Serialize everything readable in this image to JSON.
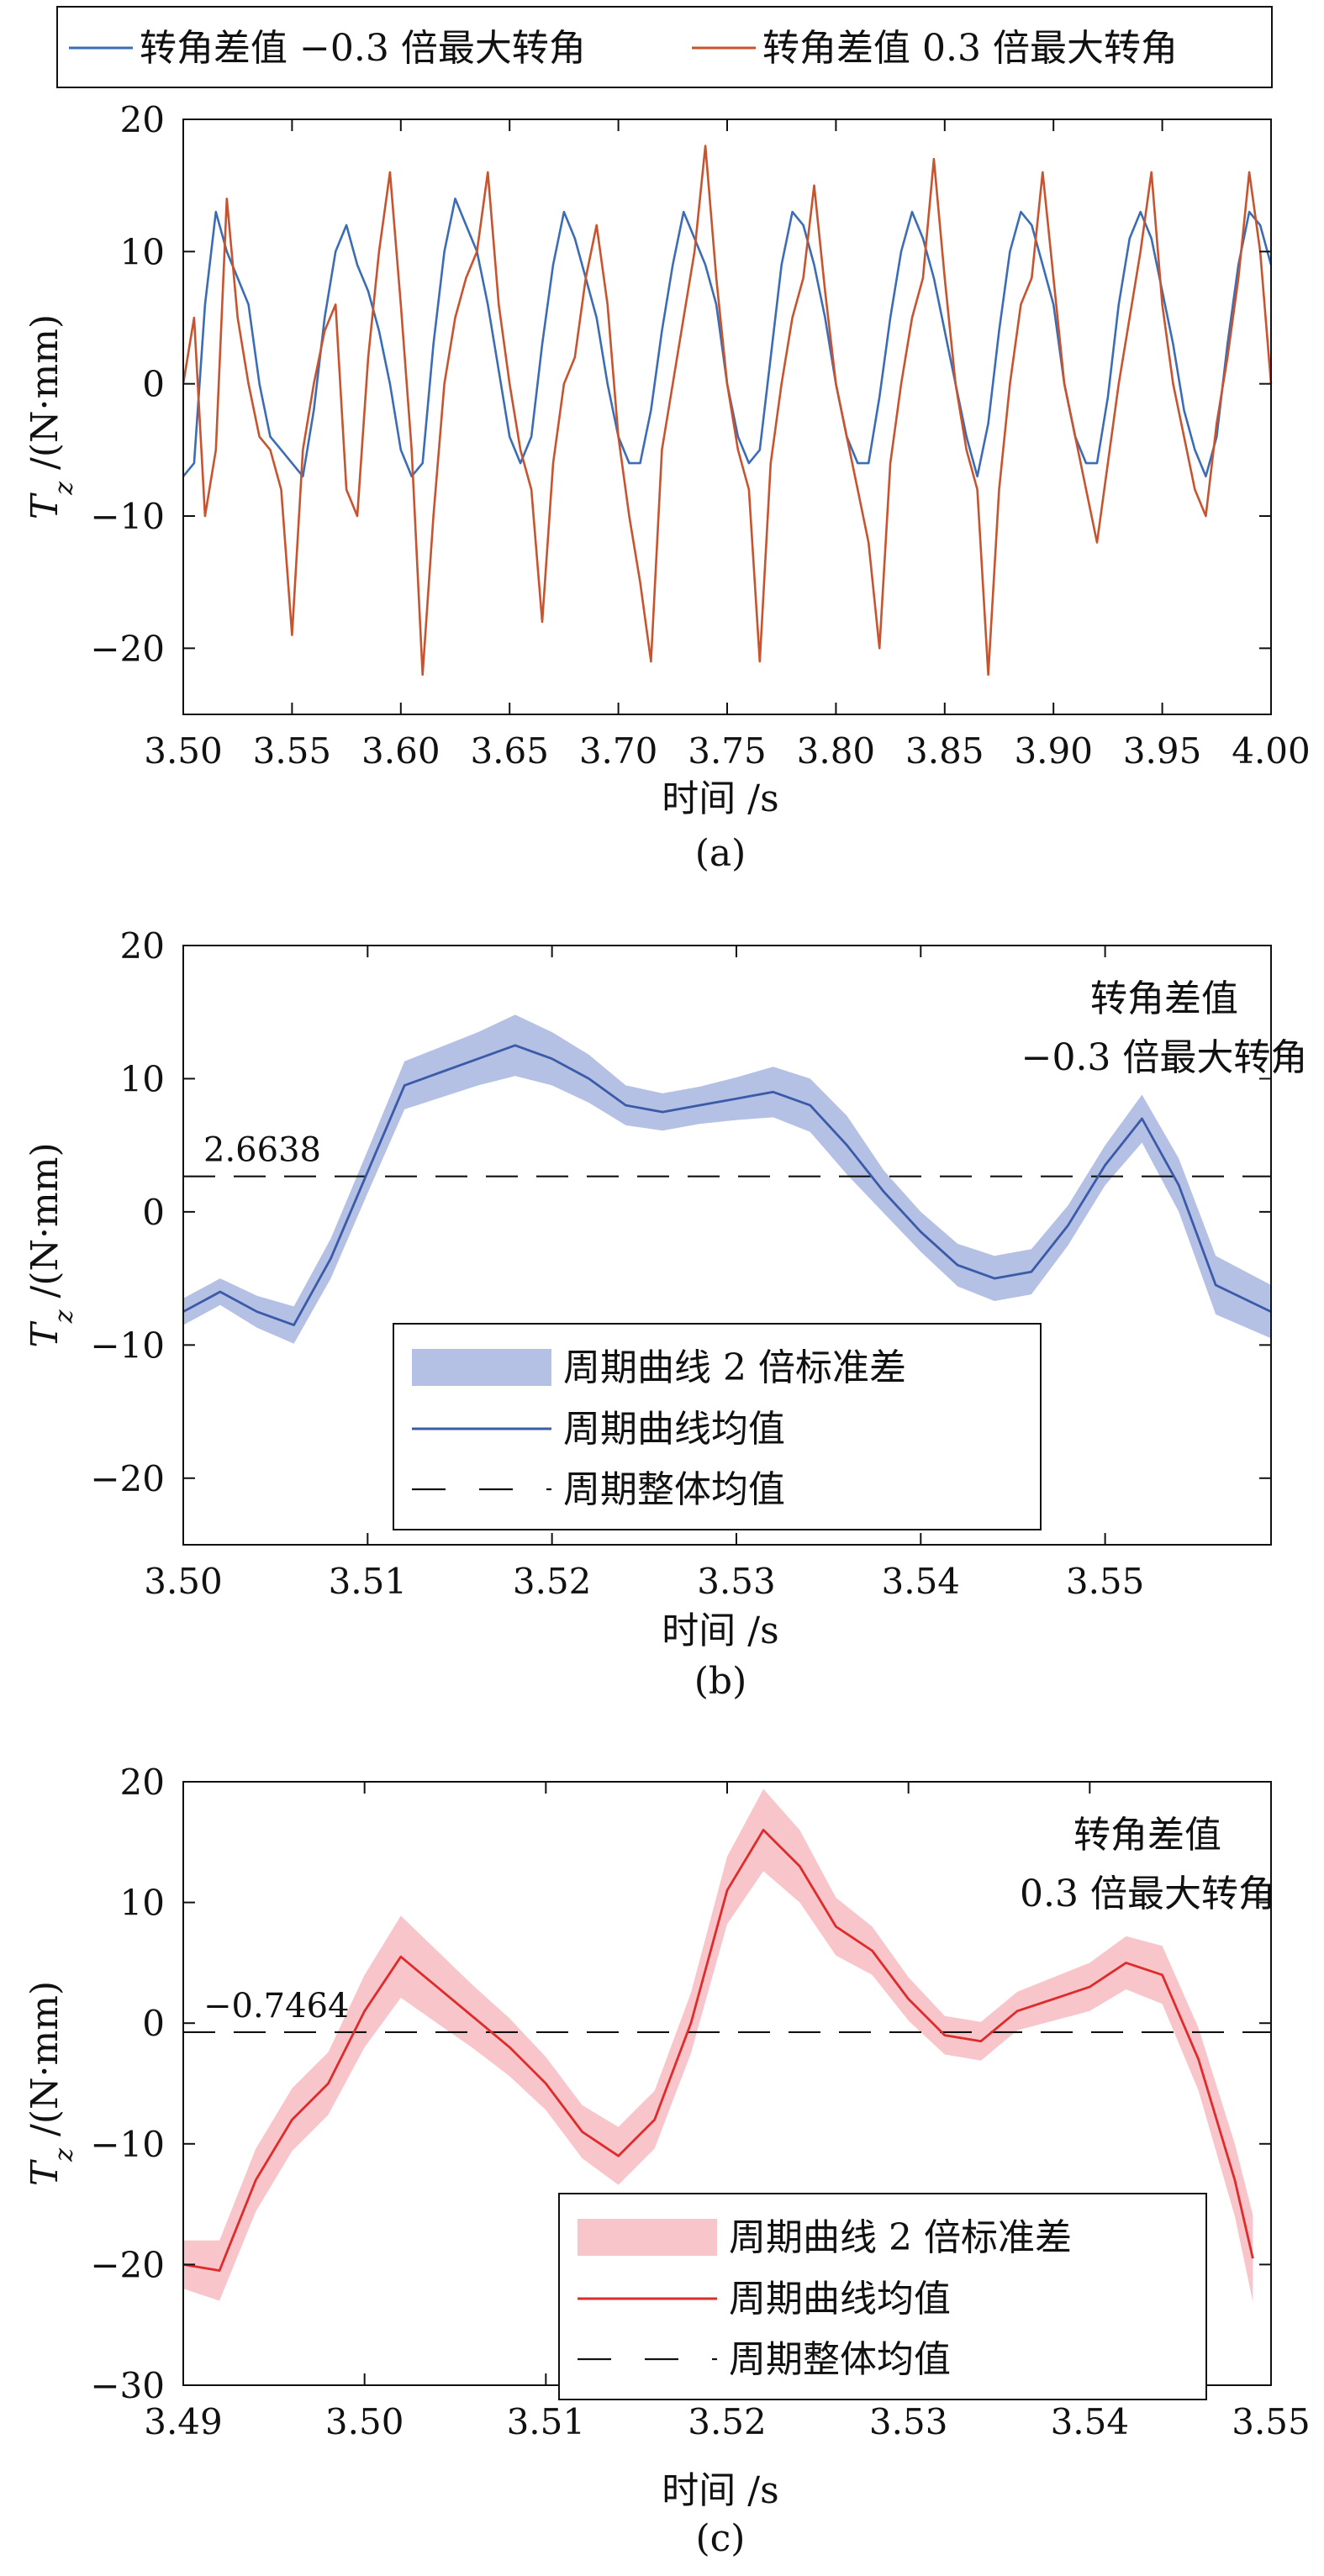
{
  "colors": {
    "blue": "#3b6cb6",
    "orange": "#c8532e",
    "red": "#de2b2b",
    "blue_band": "#b4c0e4",
    "red_band": "#f8c6ca",
    "mean_line": "#111111"
  },
  "chart_data": [
    {
      "id": "a",
      "type": "line",
      "caption": "(a)",
      "xlabel": "时间 /s",
      "ylabel": "Tz /(N·mm)",
      "ylabel_main": "T",
      "ylabel_sub": "z",
      "ylabel_unit": " /(N·mm)",
      "xlim": [
        3.5,
        4.0
      ],
      "ylim": [
        -25,
        20
      ],
      "xticks": [
        "3.50",
        "3.55",
        "3.60",
        "3.65",
        "3.70",
        "3.75",
        "3.80",
        "3.85",
        "3.90",
        "3.95",
        "4.00"
      ],
      "yticks": [
        "20",
        "10",
        "0",
        "−10",
        "−20"
      ],
      "ytick_values": [
        20,
        10,
        0,
        -10,
        -20
      ],
      "legend_position": "top-outside",
      "series": [
        {
          "name": "转角差值 −0.3 倍最大转角",
          "color": "#3b6cb6",
          "x": [
            3.5,
            3.505,
            3.51,
            3.515,
            3.52,
            3.525,
            3.53,
            3.535,
            3.54,
            3.545,
            3.55,
            3.555,
            3.56,
            3.565,
            3.57,
            3.575,
            3.58,
            3.585,
            3.59,
            3.595,
            3.6,
            3.605,
            3.61,
            3.615,
            3.62,
            3.625,
            3.63,
            3.635,
            3.64,
            3.645,
            3.65,
            3.655,
            3.66,
            3.665,
            3.67,
            3.675,
            3.68,
            3.685,
            3.69,
            3.695,
            3.7,
            3.705,
            3.71,
            3.715,
            3.72,
            3.725,
            3.73,
            3.735,
            3.74,
            3.745,
            3.75,
            3.755,
            3.76,
            3.765,
            3.77,
            3.775,
            3.78,
            3.785,
            3.79,
            3.795,
            3.8,
            3.805,
            3.81,
            3.815,
            3.82,
            3.825,
            3.83,
            3.835,
            3.84,
            3.845,
            3.85,
            3.855,
            3.86,
            3.865,
            3.87,
            3.875,
            3.88,
            3.885,
            3.89,
            3.895,
            3.9,
            3.905,
            3.91,
            3.915,
            3.92,
            3.925,
            3.93,
            3.935,
            3.94,
            3.945,
            3.95,
            3.955,
            3.96,
            3.965,
            3.97,
            3.975,
            3.98,
            3.985,
            3.99,
            3.995,
            4.0
          ],
          "y": [
            -7,
            -6,
            6,
            13,
            10,
            8,
            6,
            0,
            -4,
            -5,
            -6,
            -7,
            -2,
            5,
            10,
            12,
            9,
            7,
            4,
            0,
            -5,
            -7,
            -6,
            3,
            10,
            14,
            12,
            10,
            6,
            1,
            -4,
            -6,
            -4,
            3,
            9,
            13,
            11,
            8,
            5,
            0,
            -4,
            -6,
            -6,
            -2,
            4,
            9,
            13,
            11,
            9,
            6,
            0,
            -4,
            -6,
            -5,
            2,
            9,
            13,
            12,
            9,
            5,
            0,
            -4,
            -6,
            -6,
            -1,
            5,
            10,
            13,
            11,
            8,
            4,
            0,
            -4,
            -7,
            -3,
            4,
            10,
            13,
            12,
            9,
            6,
            0,
            -4,
            -6,
            -6,
            -1,
            6,
            11,
            13,
            11,
            7,
            3,
            -2,
            -5,
            -7,
            -4,
            3,
            9,
            13,
            12,
            9
          ]
        },
        {
          "name": "转角差值 0.3 倍最大转角",
          "color": "#c8532e",
          "x": [
            3.5,
            3.505,
            3.51,
            3.515,
            3.52,
            3.525,
            3.53,
            3.535,
            3.54,
            3.545,
            3.55,
            3.555,
            3.56,
            3.565,
            3.57,
            3.575,
            3.58,
            3.585,
            3.59,
            3.595,
            3.6,
            3.605,
            3.61,
            3.615,
            3.62,
            3.625,
            3.63,
            3.635,
            3.64,
            3.645,
            3.65,
            3.655,
            3.66,
            3.665,
            3.67,
            3.675,
            3.68,
            3.685,
            3.69,
            3.695,
            3.7,
            3.705,
            3.71,
            3.715,
            3.72,
            3.725,
            3.73,
            3.735,
            3.74,
            3.745,
            3.75,
            3.755,
            3.76,
            3.765,
            3.77,
            3.775,
            3.78,
            3.785,
            3.79,
            3.795,
            3.8,
            3.805,
            3.81,
            3.815,
            3.82,
            3.825,
            3.83,
            3.835,
            3.84,
            3.845,
            3.85,
            3.855,
            3.86,
            3.865,
            3.87,
            3.875,
            3.88,
            3.885,
            3.89,
            3.895,
            3.9,
            3.905,
            3.91,
            3.915,
            3.92,
            3.925,
            3.93,
            3.935,
            3.94,
            3.945,
            3.95,
            3.955,
            3.96,
            3.965,
            3.97,
            3.975,
            3.98,
            3.985,
            3.99,
            3.995,
            4.0
          ],
          "y": [
            0,
            5,
            -10,
            -5,
            14,
            5,
            0,
            -4,
            -5,
            -8,
            -19,
            -5,
            0,
            4,
            6,
            -8,
            -10,
            2,
            10,
            16,
            6,
            -5,
            -22,
            -10,
            0,
            5,
            8,
            10,
            16,
            6,
            0,
            -5,
            -8,
            -18,
            -6,
            0,
            2,
            8,
            12,
            6,
            -4,
            -10,
            -15,
            -21,
            -5,
            0,
            5,
            10,
            18,
            8,
            0,
            -5,
            -8,
            -21,
            -6,
            0,
            5,
            8,
            15,
            7,
            0,
            -4,
            -8,
            -12,
            -20,
            -6,
            0,
            5,
            8,
            17,
            8,
            0,
            -5,
            -8,
            -22,
            -8,
            0,
            6,
            8,
            16,
            8,
            0,
            -4,
            -8,
            -12,
            -6,
            0,
            5,
            10,
            16,
            6,
            0,
            -4,
            -8,
            -10,
            -3,
            2,
            8,
            16,
            10,
            0
          ]
        }
      ]
    },
    {
      "id": "b",
      "type": "line",
      "caption": "(b)",
      "xlabel": "时间 /s",
      "ylabel": "Tz /(N·mm)",
      "ylabel_main": "T",
      "ylabel_sub": "z",
      "ylabel_unit": " /(N·mm)",
      "xlim": [
        3.5,
        3.559
      ],
      "ylim": [
        -25,
        20
      ],
      "xticks": [
        "3.50",
        "3.51",
        "3.52",
        "3.53",
        "3.54",
        "3.55"
      ],
      "xtick_values": [
        3.5,
        3.51,
        3.52,
        3.53,
        3.54,
        3.55
      ],
      "yticks": [
        "20",
        "10",
        "0",
        "−10",
        "−20"
      ],
      "ytick_values": [
        20,
        10,
        0,
        -10,
        -20
      ],
      "annotation": {
        "title_line1": "转角差值",
        "title_line2": "−0.3 倍最大转角"
      },
      "mean_value": 2.6638,
      "mean_label": "2.6638",
      "std_band": 2,
      "legend_position": "lower-center",
      "legend": [
        "周期曲线 2 倍标准差",
        "周期曲线均值",
        "周期整体均值"
      ],
      "series": [
        {
          "name": "周期曲线均值",
          "color": "#3b5ba8",
          "x": [
            3.5,
            3.502,
            3.504,
            3.506,
            3.508,
            3.51,
            3.512,
            3.514,
            3.516,
            3.518,
            3.52,
            3.522,
            3.524,
            3.526,
            3.528,
            3.53,
            3.532,
            3.534,
            3.536,
            3.538,
            3.54,
            3.542,
            3.544,
            3.546,
            3.548,
            3.55,
            3.552,
            3.554,
            3.556,
            3.559
          ],
          "y": [
            -7.5,
            -6.0,
            -7.5,
            -8.5,
            -3.5,
            3.0,
            9.5,
            10.5,
            11.5,
            12.5,
            11.5,
            10.0,
            8.0,
            7.5,
            8.0,
            8.5,
            9.0,
            8.0,
            5.0,
            1.5,
            -1.5,
            -4.0,
            -5.0,
            -4.5,
            -1.0,
            3.5,
            7.0,
            2.0,
            -5.5,
            -7.5
          ],
          "band_half_width": [
            1.0,
            1.0,
            1.2,
            1.4,
            1.5,
            1.6,
            1.8,
            1.9,
            2.0,
            2.3,
            2.0,
            1.8,
            1.5,
            1.4,
            1.4,
            1.6,
            1.9,
            2.0,
            2.2,
            1.6,
            1.5,
            1.6,
            1.7,
            1.7,
            1.5,
            1.5,
            1.8,
            2.0,
            2.2,
            2.0
          ]
        }
      ]
    },
    {
      "id": "c",
      "type": "line",
      "caption": "(c)",
      "xlabel": "时间 /s",
      "ylabel": "Tz /(N·mm)",
      "ylabel_main": "T",
      "ylabel_sub": "z",
      "ylabel_unit": " /(N·mm)",
      "xlim": [
        3.49,
        3.55
      ],
      "ylim": [
        -30,
        20
      ],
      "xticks": [
        "3.49",
        "3.50",
        "3.51",
        "3.52",
        "3.53",
        "3.54",
        "3.55"
      ],
      "xtick_values": [
        3.49,
        3.5,
        3.51,
        3.52,
        3.53,
        3.54,
        3.55
      ],
      "yticks": [
        "20",
        "10",
        "0",
        "−10",
        "−20",
        "−30"
      ],
      "ytick_values": [
        20,
        10,
        0,
        -10,
        -20,
        -30
      ],
      "annotation": {
        "title_line1": "转角差值",
        "title_line2": "0.3 倍最大转角"
      },
      "mean_value": -0.7464,
      "mean_label": "−0.7464",
      "std_band": 2,
      "legend_position": "lower-right",
      "legend": [
        "周期曲线 2 倍标准差",
        "周期曲线均值",
        "周期整体均值"
      ],
      "series": [
        {
          "name": "周期曲线均值",
          "color": "#de2b2b",
          "x": [
            3.49,
            3.492,
            3.494,
            3.496,
            3.498,
            3.5,
            3.502,
            3.504,
            3.506,
            3.508,
            3.51,
            3.512,
            3.514,
            3.516,
            3.518,
            3.52,
            3.522,
            3.524,
            3.526,
            3.528,
            3.53,
            3.532,
            3.534,
            3.536,
            3.538,
            3.54,
            3.542,
            3.544,
            3.546,
            3.548,
            3.549
          ],
          "y": [
            -20,
            -20.5,
            -13,
            -8,
            -5,
            1,
            5.5,
            3,
            0.5,
            -2,
            -5,
            -9,
            -11,
            -8,
            0,
            11,
            16,
            13,
            8,
            6,
            2,
            -1,
            -1.5,
            1,
            2,
            3,
            5,
            4,
            -3,
            -13,
            -19.5
          ],
          "band_half_width": [
            2,
            2.5,
            2.6,
            2.6,
            2.6,
            3,
            3.4,
            3.0,
            2.6,
            2.4,
            2.2,
            2.2,
            2.4,
            2.4,
            2.5,
            2.8,
            3.4,
            3.0,
            2.4,
            2.0,
            1.8,
            1.6,
            1.6,
            1.6,
            1.8,
            2.0,
            2.2,
            2.4,
            2.6,
            3.0,
            3.6
          ]
        }
      ]
    }
  ]
}
